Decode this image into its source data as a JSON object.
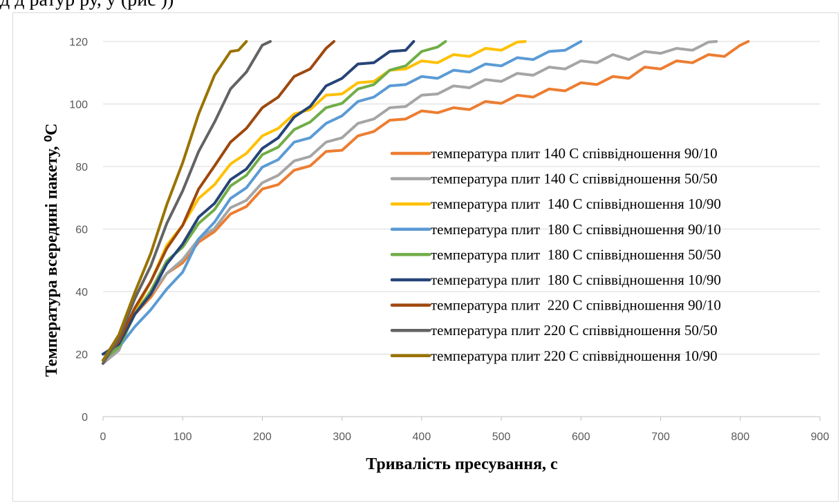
{
  "page": {
    "caption_fragment": "д      д              ратур          ру,               у                                       (рис  ))"
  },
  "chart_data": {
    "type": "line",
    "title": "",
    "xlabel": "Тривалість пресування, с",
    "ylabel": "Температура всередині пакету, ⁰С",
    "xlim": [
      0,
      900
    ],
    "ylim": [
      0,
      120
    ],
    "x_ticks": [
      "0",
      "100",
      "200",
      "300",
      "400",
      "500",
      "600",
      "700",
      "800",
      "900"
    ],
    "y_ticks": [
      "0",
      "20",
      "40",
      "60",
      "80",
      "100",
      "120"
    ],
    "grid": "horizontal",
    "legend_position": "right",
    "series": [
      {
        "name": "температура плит 140 С співвідношення 90/10",
        "color": "#ED7D31",
        "x": [
          0,
          20,
          40,
          60,
          80,
          100,
          120,
          140,
          160,
          180,
          200,
          220,
          240,
          260,
          280,
          300,
          320,
          340,
          360,
          380,
          400,
          420,
          440,
          460,
          480,
          500,
          520,
          540,
          560,
          580,
          600,
          620,
          640,
          660,
          680,
          700,
          720,
          740,
          760,
          780,
          800,
          810
        ],
        "y": [
          18,
          24,
          32,
          39,
          45,
          50,
          55,
          60,
          64,
          68,
          72,
          75,
          78,
          81,
          84,
          86,
          89,
          92,
          94,
          96,
          97,
          98,
          98,
          99,
          100,
          101,
          102,
          103,
          104,
          105,
          106,
          107,
          108,
          109,
          111,
          112,
          113,
          114,
          115,
          116,
          118,
          120
        ]
      },
      {
        "name": "температура плит 140 С співвідношення 50/50",
        "color": "#A5A5A5",
        "x": [
          0,
          20,
          40,
          60,
          80,
          100,
          120,
          140,
          160,
          180,
          200,
          220,
          240,
          260,
          280,
          300,
          320,
          340,
          360,
          380,
          400,
          420,
          440,
          460,
          480,
          500,
          520,
          540,
          560,
          580,
          600,
          620,
          640,
          660,
          680,
          700,
          720,
          740,
          760,
          770
        ],
        "y": [
          17,
          22,
          33,
          40,
          45,
          51,
          56,
          61,
          66,
          70,
          74,
          78,
          81,
          84,
          87,
          90,
          93,
          96,
          98,
          100,
          102,
          104,
          105,
          106,
          107,
          108,
          109,
          110,
          111,
          112,
          113,
          114,
          115,
          115,
          116,
          117,
          117,
          118,
          119,
          120
        ]
      },
      {
        "name": "температура плит  140 С співвідношення 10/90",
        "color": "#FFC000",
        "x": [
          0,
          20,
          40,
          60,
          80,
          100,
          120,
          140,
          160,
          180,
          200,
          220,
          240,
          260,
          280,
          300,
          320,
          340,
          360,
          380,
          400,
          420,
          440,
          460,
          480,
          500,
          520,
          530
        ],
        "y": [
          18,
          24,
          33,
          44,
          54,
          62,
          69,
          75,
          80,
          85,
          89,
          93,
          96,
          99,
          102,
          104,
          106,
          108,
          110,
          112,
          113,
          114,
          115,
          116,
          117,
          118,
          119,
          120
        ]
      },
      {
        "name": "температура плит  180 С співвідношення 90/10",
        "color": "#5B9BD5",
        "x": [
          0,
          20,
          40,
          60,
          80,
          100,
          120,
          140,
          160,
          180,
          200,
          220,
          240,
          260,
          280,
          300,
          320,
          340,
          360,
          380,
          400,
          420,
          440,
          460,
          480,
          500,
          520,
          540,
          560,
          580,
          600
        ],
        "y": [
          20,
          23,
          28,
          35,
          40,
          47,
          56,
          63,
          69,
          74,
          79,
          83,
          87,
          90,
          93,
          97,
          100,
          103,
          105,
          107,
          108,
          109,
          110,
          111,
          112,
          113,
          114,
          115,
          116,
          118,
          120
        ]
      },
      {
        "name": "температура плит  180 С співвідношення 50/50",
        "color": "#70AD47",
        "x": [
          0,
          20,
          40,
          60,
          80,
          100,
          120,
          140,
          160,
          180,
          200,
          220,
          240,
          260,
          280,
          300,
          320,
          340,
          360,
          380,
          400,
          420,
          430
        ],
        "y": [
          18,
          23,
          32,
          41,
          49,
          55,
          61,
          67,
          73,
          78,
          83,
          87,
          91,
          95,
          98,
          101,
          104,
          107,
          110,
          113,
          116,
          119,
          120
        ]
      },
      {
        "name": "температура плит  180 С співвідношення 10/90",
        "color": "#264478",
        "x": [
          0,
          20,
          40,
          60,
          80,
          100,
          120,
          140,
          160,
          180,
          200,
          220,
          240,
          260,
          280,
          300,
          320,
          340,
          360,
          380,
          390
        ],
        "y": [
          20,
          24,
          32,
          40,
          48,
          56,
          63,
          69,
          75,
          80,
          85,
          90,
          95,
          100,
          105,
          109,
          112,
          114,
          116,
          118,
          120
        ]
      },
      {
        "name": "температура плит  220 С співвідношення 90/10",
        "color": "#9E480E",
        "x": [
          0,
          20,
          40,
          60,
          80,
          100,
          120,
          140,
          160,
          180,
          200,
          220,
          240,
          260,
          280,
          290
        ],
        "y": [
          18,
          25,
          34,
          44,
          53,
          62,
          72,
          81,
          87,
          93,
          98,
          103,
          108,
          112,
          117,
          120
        ]
      },
      {
        "name": "температура плит 220 С співвідношення 50/50",
        "color": "#636363",
        "x": [
          0,
          20,
          40,
          60,
          80,
          100,
          120,
          140,
          160,
          180,
          200,
          210
        ],
        "y": [
          17,
          26,
          37,
          49,
          61,
          73,
          84,
          95,
          104,
          111,
          118,
          120
        ]
      },
      {
        "name": "температура плит 220 С співвідношення 10/90",
        "color": "#997300",
        "x": [
          0,
          20,
          40,
          60,
          80,
          100,
          120,
          140,
          160,
          170,
          180
        ],
        "y": [
          18,
          27,
          39,
          53,
          67,
          82,
          96,
          110,
          116,
          118,
          120
        ]
      }
    ]
  }
}
